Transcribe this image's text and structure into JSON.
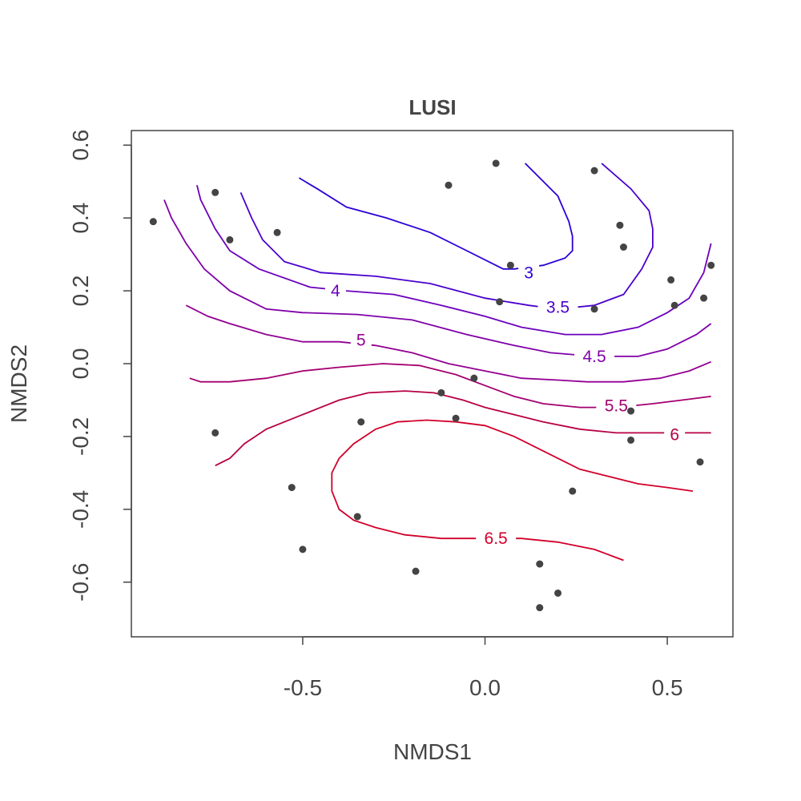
{
  "chart_data": {
    "type": "scatter",
    "title": "LUSI",
    "xlabel": "NMDS1",
    "ylabel": "NMDS2",
    "xlim": [
      -0.97,
      0.68
    ],
    "ylim": [
      -0.75,
      0.64
    ],
    "xticks": [
      -0.5,
      0.0,
      0.5
    ],
    "xtick_labels": [
      "-0.5",
      "0.0",
      "0.5"
    ],
    "yticks": [
      -0.6,
      -0.4,
      -0.2,
      0.0,
      0.2,
      0.4,
      0.6
    ],
    "ytick_labels": [
      "-0.6",
      "-0.4",
      "-0.2",
      "0.0",
      "0.2",
      "0.4",
      "0.6"
    ],
    "grid": false,
    "point_color": "#444444",
    "points": [
      {
        "x": -0.91,
        "y": 0.39
      },
      {
        "x": -0.74,
        "y": 0.47
      },
      {
        "x": -0.7,
        "y": 0.34
      },
      {
        "x": -0.57,
        "y": 0.36
      },
      {
        "x": -0.1,
        "y": 0.49
      },
      {
        "x": 0.03,
        "y": 0.55
      },
      {
        "x": 0.3,
        "y": 0.53
      },
      {
        "x": 0.37,
        "y": 0.38
      },
      {
        "x": 0.38,
        "y": 0.32
      },
      {
        "x": 0.07,
        "y": 0.27
      },
      {
        "x": 0.04,
        "y": 0.17
      },
      {
        "x": 0.3,
        "y": 0.15
      },
      {
        "x": 0.51,
        "y": 0.23
      },
      {
        "x": 0.52,
        "y": 0.16
      },
      {
        "x": 0.6,
        "y": 0.18
      },
      {
        "x": 0.62,
        "y": 0.27
      },
      {
        "x": -0.03,
        "y": -0.04
      },
      {
        "x": -0.12,
        "y": -0.08
      },
      {
        "x": -0.08,
        "y": -0.15
      },
      {
        "x": -0.34,
        "y": -0.16
      },
      {
        "x": -0.74,
        "y": -0.19
      },
      {
        "x": 0.4,
        "y": -0.13
      },
      {
        "x": 0.4,
        "y": -0.21
      },
      {
        "x": 0.59,
        "y": -0.27
      },
      {
        "x": -0.53,
        "y": -0.34
      },
      {
        "x": 0.24,
        "y": -0.35
      },
      {
        "x": -0.35,
        "y": -0.42
      },
      {
        "x": -0.5,
        "y": -0.51
      },
      {
        "x": -0.19,
        "y": -0.57
      },
      {
        "x": 0.15,
        "y": -0.55
      },
      {
        "x": 0.2,
        "y": -0.63
      },
      {
        "x": 0.15,
        "y": -0.67
      }
    ],
    "contours": [
      {
        "level": "3",
        "color": "#2c00d6",
        "label": {
          "text": "3",
          "x": 0.12,
          "y": 0.25
        },
        "points": [
          [
            0.11,
            0.55
          ],
          [
            0.2,
            0.46
          ],
          [
            0.23,
            0.39
          ],
          [
            0.24,
            0.35
          ],
          [
            0.24,
            0.31
          ],
          [
            0.22,
            0.29
          ],
          [
            0.16,
            0.27
          ],
          [
            0.08,
            0.26
          ],
          [
            0.05,
            0.26
          ],
          [
            -0.05,
            0.31
          ],
          [
            -0.15,
            0.36
          ],
          [
            -0.27,
            0.4
          ],
          [
            -0.38,
            0.43
          ],
          [
            -0.46,
            0.48
          ],
          [
            -0.51,
            0.51
          ]
        ]
      },
      {
        "level": "3.5",
        "color": "#4a00cd",
        "label": {
          "text": "3.5",
          "x": 0.2,
          "y": 0.155
        },
        "points": [
          [
            0.32,
            0.55
          ],
          [
            0.4,
            0.48
          ],
          [
            0.45,
            0.42
          ],
          [
            0.46,
            0.37
          ],
          [
            0.46,
            0.32
          ],
          [
            0.43,
            0.26
          ],
          [
            0.38,
            0.19
          ],
          [
            0.3,
            0.16
          ],
          [
            0.2,
            0.15
          ],
          [
            0.12,
            0.16
          ],
          [
            0.0,
            0.18
          ],
          [
            -0.15,
            0.22
          ],
          [
            -0.3,
            0.24
          ],
          [
            -0.45,
            0.25
          ],
          [
            -0.55,
            0.28
          ],
          [
            -0.61,
            0.34
          ],
          [
            -0.64,
            0.4
          ],
          [
            -0.67,
            0.47
          ]
        ]
      },
      {
        "level": "4",
        "color": "#6b00bd",
        "label": {
          "text": "4",
          "x": -0.41,
          "y": 0.2
        },
        "points": [
          [
            0.62,
            0.33
          ],
          [
            0.6,
            0.25
          ],
          [
            0.56,
            0.18
          ],
          [
            0.5,
            0.14
          ],
          [
            0.42,
            0.1
          ],
          [
            0.32,
            0.08
          ],
          [
            0.22,
            0.08
          ],
          [
            0.1,
            0.1
          ],
          [
            0.0,
            0.13
          ],
          [
            -0.12,
            0.16
          ],
          [
            -0.25,
            0.19
          ],
          [
            -0.38,
            0.2
          ],
          [
            -0.48,
            0.21
          ],
          [
            -0.62,
            0.26
          ],
          [
            -0.7,
            0.31
          ],
          [
            -0.74,
            0.37
          ],
          [
            -0.78,
            0.45
          ],
          [
            -0.79,
            0.49
          ]
        ]
      },
      {
        "level": "4.5",
        "color": "#8000a8",
        "label": {
          "text": "4.5",
          "x": 0.3,
          "y": 0.02
        },
        "points": [
          [
            0.62,
            0.11
          ],
          [
            0.58,
            0.08
          ],
          [
            0.5,
            0.04
          ],
          [
            0.42,
            0.02
          ],
          [
            0.3,
            0.02
          ],
          [
            0.18,
            0.03
          ],
          [
            0.08,
            0.05
          ],
          [
            -0.05,
            0.08
          ],
          [
            -0.2,
            0.12
          ],
          [
            -0.35,
            0.135
          ],
          [
            -0.5,
            0.14
          ],
          [
            -0.6,
            0.15
          ],
          [
            -0.7,
            0.2
          ],
          [
            -0.77,
            0.26
          ],
          [
            -0.82,
            0.33
          ],
          [
            -0.86,
            0.4
          ],
          [
            -0.88,
            0.45
          ]
        ]
      },
      {
        "level": "5",
        "color": "#930093",
        "label": {
          "text": "5",
          "x": -0.34,
          "y": 0.065
        },
        "points": [
          [
            0.62,
            0.005
          ],
          [
            0.56,
            -0.02
          ],
          [
            0.48,
            -0.04
          ],
          [
            0.38,
            -0.05
          ],
          [
            0.28,
            -0.05
          ],
          [
            0.2,
            -0.045
          ],
          [
            0.1,
            -0.04
          ],
          [
            0.0,
            -0.02
          ],
          [
            -0.1,
            0.0
          ],
          [
            -0.2,
            0.03
          ],
          [
            -0.3,
            0.05
          ],
          [
            -0.4,
            0.06
          ],
          [
            -0.5,
            0.06
          ],
          [
            -0.6,
            0.08
          ],
          [
            -0.7,
            0.11
          ],
          [
            -0.76,
            0.13
          ],
          [
            -0.82,
            0.16
          ]
        ]
      },
      {
        "level": "5.5",
        "color": "#a3006f",
        "label": {
          "text": "5.5",
          "x": 0.36,
          "y": -0.115
        },
        "points": [
          [
            0.62,
            -0.09
          ],
          [
            0.54,
            -0.1
          ],
          [
            0.46,
            -0.11
          ],
          [
            0.36,
            -0.12
          ],
          [
            0.26,
            -0.12
          ],
          [
            0.16,
            -0.11
          ],
          [
            0.08,
            -0.09
          ],
          [
            0.0,
            -0.06
          ],
          [
            -0.08,
            -0.03
          ],
          [
            -0.18,
            -0.005
          ],
          [
            -0.28,
            0.0
          ],
          [
            -0.4,
            -0.01
          ],
          [
            -0.5,
            -0.02
          ],
          [
            -0.6,
            -0.04
          ],
          [
            -0.7,
            -0.05
          ],
          [
            -0.78,
            -0.05
          ],
          [
            -0.81,
            -0.04
          ]
        ]
      },
      {
        "level": "6",
        "color": "#b80044",
        "label": {
          "text": "6",
          "x": 0.52,
          "y": -0.195
        },
        "points": [
          [
            0.62,
            -0.19
          ],
          [
            0.55,
            -0.19
          ],
          [
            0.46,
            -0.19
          ],
          [
            0.36,
            -0.19
          ],
          [
            0.26,
            -0.18
          ],
          [
            0.16,
            -0.16
          ],
          [
            0.08,
            -0.14
          ],
          [
            0.0,
            -0.12
          ],
          [
            -0.06,
            -0.1
          ],
          [
            -0.14,
            -0.08
          ],
          [
            -0.22,
            -0.075
          ],
          [
            -0.32,
            -0.08
          ],
          [
            -0.4,
            -0.1
          ],
          [
            -0.5,
            -0.14
          ],
          [
            -0.6,
            -0.18
          ],
          [
            -0.66,
            -0.22
          ],
          [
            -0.7,
            -0.26
          ],
          [
            -0.74,
            -0.28
          ]
        ]
      },
      {
        "level": "6.5",
        "color": "#d1002a",
        "label": {
          "text": "6.5",
          "x": 0.03,
          "y": -0.48
        },
        "points": [
          [
            0.57,
            -0.35
          ],
          [
            0.5,
            -0.34
          ],
          [
            0.42,
            -0.33
          ],
          [
            0.34,
            -0.31
          ],
          [
            0.26,
            -0.29
          ],
          [
            0.2,
            -0.26
          ],
          [
            0.14,
            -0.23
          ],
          [
            0.08,
            -0.2
          ],
          [
            0.0,
            -0.17
          ],
          [
            -0.08,
            -0.16
          ],
          [
            -0.16,
            -0.155
          ],
          [
            -0.24,
            -0.16
          ],
          [
            -0.3,
            -0.18
          ],
          [
            -0.36,
            -0.22
          ],
          [
            -0.4,
            -0.26
          ],
          [
            -0.42,
            -0.3
          ],
          [
            -0.42,
            -0.35
          ],
          [
            -0.4,
            -0.4
          ],
          [
            -0.36,
            -0.43
          ],
          [
            -0.3,
            -0.45
          ],
          [
            -0.22,
            -0.47
          ],
          [
            -0.12,
            -0.48
          ],
          [
            -0.02,
            -0.48
          ],
          [
            0.1,
            -0.48
          ],
          [
            0.2,
            -0.49
          ],
          [
            0.3,
            -0.51
          ],
          [
            0.38,
            -0.54
          ]
        ]
      }
    ]
  }
}
